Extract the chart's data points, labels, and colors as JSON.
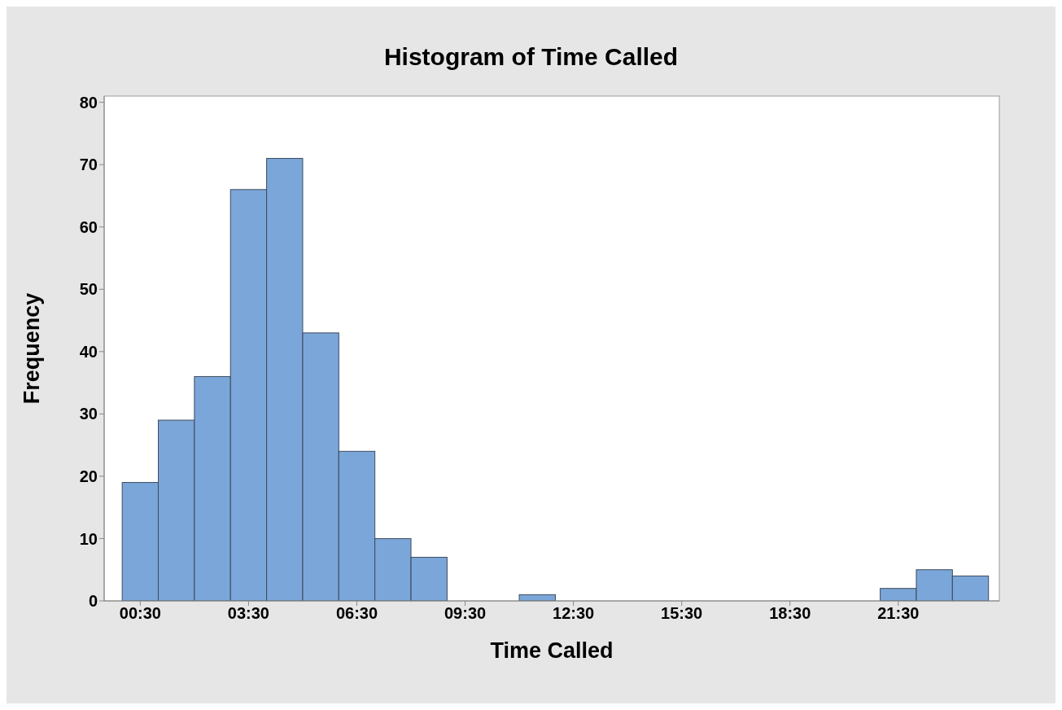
{
  "chart_data": {
    "type": "histogram",
    "title": "Histogram of Time Called",
    "xlabel": "Time Called",
    "ylabel": "Frequency",
    "bins": [
      0,
      1,
      2,
      3,
      4,
      5,
      6,
      7,
      8,
      9,
      10,
      11,
      12,
      13,
      14,
      15,
      16,
      17,
      18,
      19,
      20,
      21,
      22,
      23,
      24
    ],
    "values": [
      19,
      29,
      36,
      66,
      71,
      43,
      24,
      10,
      7,
      0,
      0,
      1,
      0,
      0,
      0,
      0,
      0,
      0,
      0,
      0,
      0,
      2,
      5,
      4
    ],
    "color": "#7ba6d9",
    "xlim": [
      -0.5,
      24.3
    ],
    "xticks": [
      {
        "value": 0.5,
        "label": "00:30"
      },
      {
        "value": 3.5,
        "label": "03:30"
      },
      {
        "value": 6.5,
        "label": "06:30"
      },
      {
        "value": 9.5,
        "label": "09:30"
      },
      {
        "value": 12.5,
        "label": "12:30"
      },
      {
        "value": 15.5,
        "label": "15:30"
      },
      {
        "value": 18.5,
        "label": "18:30"
      },
      {
        "value": 21.5,
        "label": "21:30"
      }
    ],
    "ylim": [
      0,
      81
    ],
    "yticks": [
      0,
      10,
      20,
      30,
      40,
      50,
      60,
      70,
      80
    ]
  }
}
